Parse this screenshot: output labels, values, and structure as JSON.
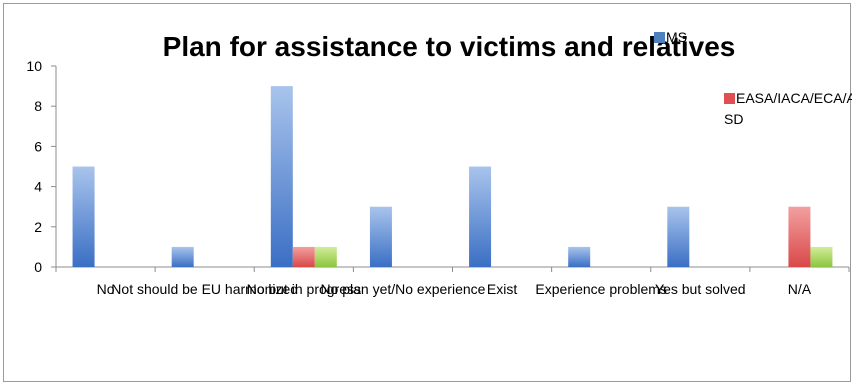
{
  "chart_data": {
    "type": "bar",
    "title": "Plan for assistance to victims and relatives",
    "xlabel": "",
    "ylabel": "",
    "ylim": [
      0,
      10
    ],
    "yticks": [
      0,
      2,
      4,
      6,
      8,
      10
    ],
    "grid": false,
    "legend_placement": "top-right",
    "categories": [
      "No",
      "Not should be EU harmonized",
      "No but in progress",
      "No plan yet/No experience",
      "Exist",
      "Experience problems",
      "Yes but solved",
      "N/A"
    ],
    "series": [
      {
        "name": "MS",
        "color": "#4f81bd",
        "values": [
          5,
          1,
          9,
          3,
          5,
          1,
          3,
          0
        ]
      },
      {
        "name": "EASA/IACA/ECA/A SD",
        "color": "#e05050",
        "values": [
          0,
          0,
          1,
          0,
          0,
          0,
          0,
          3
        ]
      },
      {
        "name": "",
        "color": "#92d050",
        "values": [
          0,
          0,
          1,
          0,
          0,
          0,
          0,
          1
        ]
      }
    ],
    "legend_lines": [
      [
        "MS"
      ],
      [
        "EASA/IACA/ECA/A",
        "SD"
      ]
    ]
  }
}
